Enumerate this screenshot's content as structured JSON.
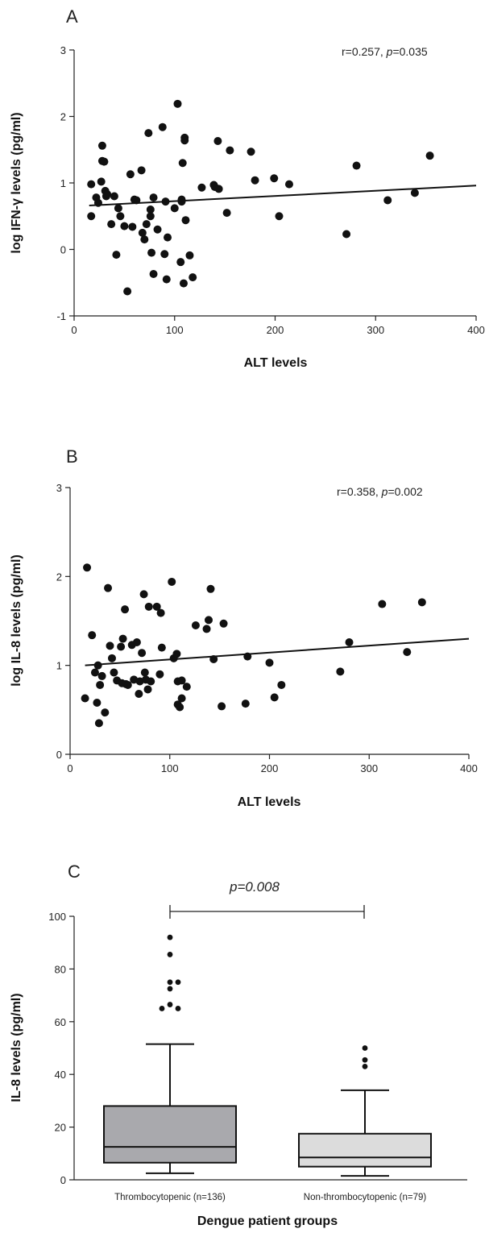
{
  "chart_data": [
    {
      "type": "scatter",
      "panel": "A",
      "xlabel": "ALT levels",
      "ylabel": "log IFN-γ levels (pg/ml)",
      "xlim": [
        0,
        400
      ],
      "ylim": [
        -1,
        3
      ],
      "xticks": [
        "0",
        "100",
        "200",
        "300",
        "400"
      ],
      "yticks": [
        "-1",
        "0",
        "1",
        "2",
        "3"
      ],
      "annotation": {
        "r_text": "r=0.257, ",
        "p_label": "p",
        "p_text": "=0.035"
      },
      "fit_line": {
        "x": [
          15,
          400
        ],
        "y": [
          0.66,
          0.96
        ]
      },
      "points": [
        [
          17,
          0.98
        ],
        [
          17,
          0.5
        ],
        [
          22,
          0.78
        ],
        [
          24,
          0.7
        ],
        [
          27,
          1.02
        ],
        [
          28,
          1.56
        ],
        [
          28,
          1.33
        ],
        [
          30,
          1.32
        ],
        [
          31,
          0.88
        ],
        [
          32,
          0.8
        ],
        [
          33,
          0.83
        ],
        [
          37,
          0.38
        ],
        [
          40,
          0.8
        ],
        [
          42,
          -0.08
        ],
        [
          44,
          0.62
        ],
        [
          46,
          0.5
        ],
        [
          50,
          0.35
        ],
        [
          53,
          -0.63
        ],
        [
          56,
          1.13
        ],
        [
          58,
          0.34
        ],
        [
          60,
          0.75
        ],
        [
          62,
          0.74
        ],
        [
          67,
          1.19
        ],
        [
          68,
          0.25
        ],
        [
          70,
          0.15
        ],
        [
          72,
          0.38
        ],
        [
          74,
          1.75
        ],
        [
          76,
          0.6
        ],
        [
          76,
          0.5
        ],
        [
          77,
          -0.05
        ],
        [
          79,
          -0.37
        ],
        [
          79,
          0.78
        ],
        [
          83,
          0.3
        ],
        [
          88,
          1.84
        ],
        [
          90,
          -0.07
        ],
        [
          91,
          0.72
        ],
        [
          92,
          -0.45
        ],
        [
          93,
          0.18
        ],
        [
          100,
          0.62
        ],
        [
          103,
          2.19
        ],
        [
          106,
          -0.19
        ],
        [
          107,
          0.75
        ],
        [
          107,
          0.72
        ],
        [
          108,
          1.3
        ],
        [
          109,
          -0.51
        ],
        [
          110,
          1.68
        ],
        [
          110,
          1.64
        ],
        [
          111,
          0.44
        ],
        [
          115,
          -0.09
        ],
        [
          118,
          -0.42
        ],
        [
          127,
          0.93
        ],
        [
          139,
          0.97
        ],
        [
          140,
          0.94
        ],
        [
          143,
          1.63
        ],
        [
          144,
          0.91
        ],
        [
          152,
          0.55
        ],
        [
          155,
          1.49
        ],
        [
          176,
          1.47
        ],
        [
          180,
          1.04
        ],
        [
          199,
          1.07
        ],
        [
          204,
          0.5
        ],
        [
          214,
          0.98
        ],
        [
          271,
          0.23
        ],
        [
          281,
          1.26
        ],
        [
          312,
          0.74
        ],
        [
          339,
          0.85
        ],
        [
          354,
          1.41
        ]
      ]
    },
    {
      "type": "scatter",
      "panel": "B",
      "xlabel": "ALT levels",
      "ylabel": "log IL-8 levels (pg/ml)",
      "xlim": [
        0,
        400
      ],
      "ylim": [
        0,
        3
      ],
      "xticks": [
        "0",
        "100",
        "200",
        "300",
        "400"
      ],
      "yticks": [
        "0",
        "1",
        "2",
        "3"
      ],
      "annotation": {
        "r_text": "r=0.358, ",
        "p_label": "p",
        "p_text": "=0.002"
      },
      "fit_line": {
        "x": [
          15,
          400
        ],
        "y": [
          1.0,
          1.3
        ]
      },
      "points": [
        [
          15,
          0.63
        ],
        [
          17,
          2.1
        ],
        [
          22,
          1.34
        ],
        [
          25,
          0.92
        ],
        [
          27,
          0.58
        ],
        [
          28,
          1.0
        ],
        [
          29,
          0.35
        ],
        [
          30,
          0.78
        ],
        [
          32,
          0.88
        ],
        [
          35,
          0.47
        ],
        [
          38,
          1.87
        ],
        [
          40,
          1.22
        ],
        [
          42,
          1.08
        ],
        [
          44,
          0.92
        ],
        [
          47,
          0.83
        ],
        [
          51,
          1.21
        ],
        [
          52,
          0.8
        ],
        [
          53,
          1.3
        ],
        [
          55,
          1.63
        ],
        [
          56,
          0.79
        ],
        [
          58,
          0.78
        ],
        [
          62,
          1.23
        ],
        [
          64,
          0.84
        ],
        [
          67,
          1.26
        ],
        [
          69,
          0.68
        ],
        [
          70,
          0.82
        ],
        [
          72,
          1.14
        ],
        [
          74,
          1.8
        ],
        [
          75,
          0.92
        ],
        [
          76,
          0.84
        ],
        [
          78,
          0.73
        ],
        [
          79,
          1.66
        ],
        [
          81,
          0.82
        ],
        [
          87,
          1.66
        ],
        [
          90,
          0.9
        ],
        [
          91,
          1.59
        ],
        [
          92,
          1.2
        ],
        [
          102,
          1.94
        ],
        [
          104,
          1.08
        ],
        [
          107,
          1.13
        ],
        [
          108,
          0.82
        ],
        [
          108,
          0.56
        ],
        [
          110,
          0.53
        ],
        [
          112,
          0.83
        ],
        [
          112,
          0.63
        ],
        [
          117,
          0.76
        ],
        [
          126,
          1.45
        ],
        [
          137,
          1.41
        ],
        [
          139,
          1.51
        ],
        [
          141,
          1.86
        ],
        [
          144,
          1.07
        ],
        [
          152,
          0.54
        ],
        [
          154,
          1.47
        ],
        [
          176,
          0.57
        ],
        [
          178,
          1.1
        ],
        [
          200,
          1.03
        ],
        [
          205,
          0.64
        ],
        [
          212,
          0.78
        ],
        [
          271,
          0.93
        ],
        [
          280,
          1.26
        ],
        [
          313,
          1.69
        ],
        [
          338,
          1.15
        ],
        [
          353,
          1.71
        ]
      ]
    },
    {
      "type": "box",
      "panel": "C",
      "xlabel": "Dengue patient groups",
      "ylabel": "IL-8 levels (pg/ml)",
      "ylim": [
        0,
        100
      ],
      "yticks": [
        "0",
        "20",
        "40",
        "60",
        "80",
        "100"
      ],
      "bracket_label": "p=0.008",
      "groups": [
        {
          "label": "Thrombocytopenic (n=136)",
          "fill": "#a9a9ad",
          "min": 2.5,
          "q1": 6.5,
          "median": 12.5,
          "q3": 28,
          "max": 51.5,
          "outliers": [
            92,
            85.5,
            75,
            75,
            72.5,
            66.5,
            65,
            65
          ]
        },
        {
          "label": "Non-thrombocytopenic (n=79)",
          "fill": "#dcdcdc",
          "min": 1.5,
          "q1": 5,
          "median": 8.5,
          "q3": 17.5,
          "max": 34,
          "outliers": [
            50,
            45.5,
            43
          ]
        }
      ]
    }
  ]
}
